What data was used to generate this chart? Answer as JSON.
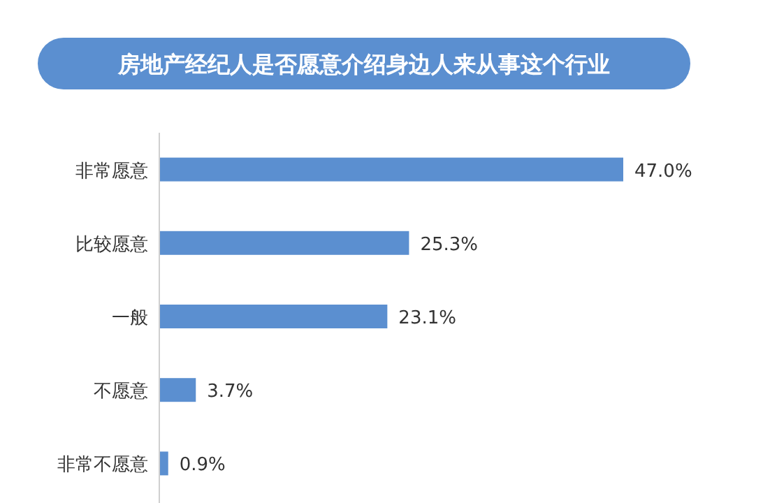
{
  "chart_data": {
    "type": "bar",
    "orientation": "horizontal",
    "title": "房地产经纪人是否愿意介绍身边人来从事这个行业",
    "categories": [
      "非常愿意",
      "比较愿意",
      "一般",
      "不愿意",
      "非常不愿意"
    ],
    "values": [
      47.0,
      25.3,
      23.1,
      3.7,
      0.9
    ],
    "value_labels": [
      "47.0%",
      "25.3%",
      "23.1%",
      "3.7%",
      "0.9%"
    ],
    "color": "#5b8fd0"
  }
}
